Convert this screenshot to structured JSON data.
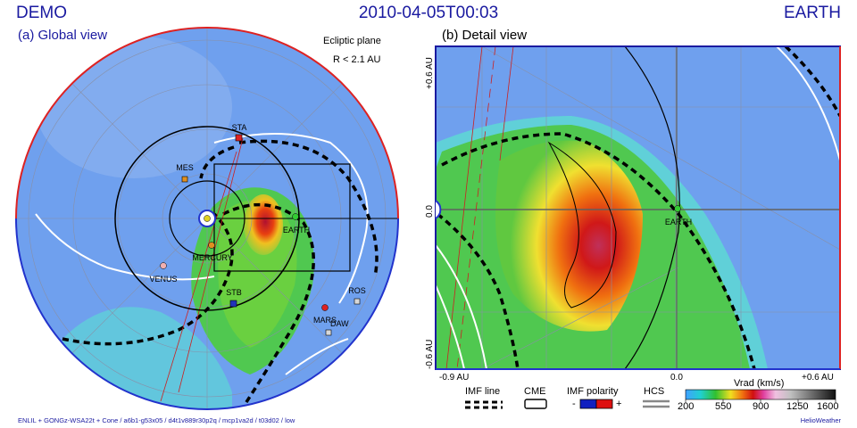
{
  "header": {
    "left": "DEMO",
    "center": "2010-04-05T00:03",
    "right": "EARTH"
  },
  "panel_a": {
    "title": "(a) Global view",
    "plane": "Ecliptic plane",
    "radius": "R < 2.1 AU",
    "bodies": {
      "sta": "STA",
      "stb": "STB",
      "mes": "MES",
      "mercury": "MERCURY",
      "venus": "VENUS",
      "earth": "EARTH",
      "ros": "ROS",
      "mars": "MARS",
      "daw": "DAW"
    }
  },
  "panel_b": {
    "title": "(b) Detail view",
    "earth": "EARTH",
    "x_ticks": [
      "-0.9 AU",
      "0.0",
      "+0.6 AU"
    ],
    "y_ticks": [
      "+0.6 AU",
      "0.0",
      "-0.6 AU"
    ]
  },
  "legend": {
    "imf_line": "IMF line",
    "cme": "CME",
    "imf_polarity": "IMF polarity",
    "polarity_minus": "-",
    "polarity_plus": "+",
    "hcs": "HCS",
    "colorbar_title": "Vrad (km/s)",
    "colorbar_ticks": [
      "200",
      "550",
      "900",
      "1250",
      "1600"
    ]
  },
  "footer": {
    "left": "ENLIL + GONGz-WSA22t + Cone / a6b1-g53x05 / d4t1v889r30p2q / mcp1va2d / t03d02 / low",
    "right": "HelioWeather"
  },
  "colors": {
    "text": "#1a1aa0",
    "background_field": "#6fa0ee",
    "sta": "#dd2222",
    "stb": "#2233bb",
    "earth": "#33cc33"
  }
}
